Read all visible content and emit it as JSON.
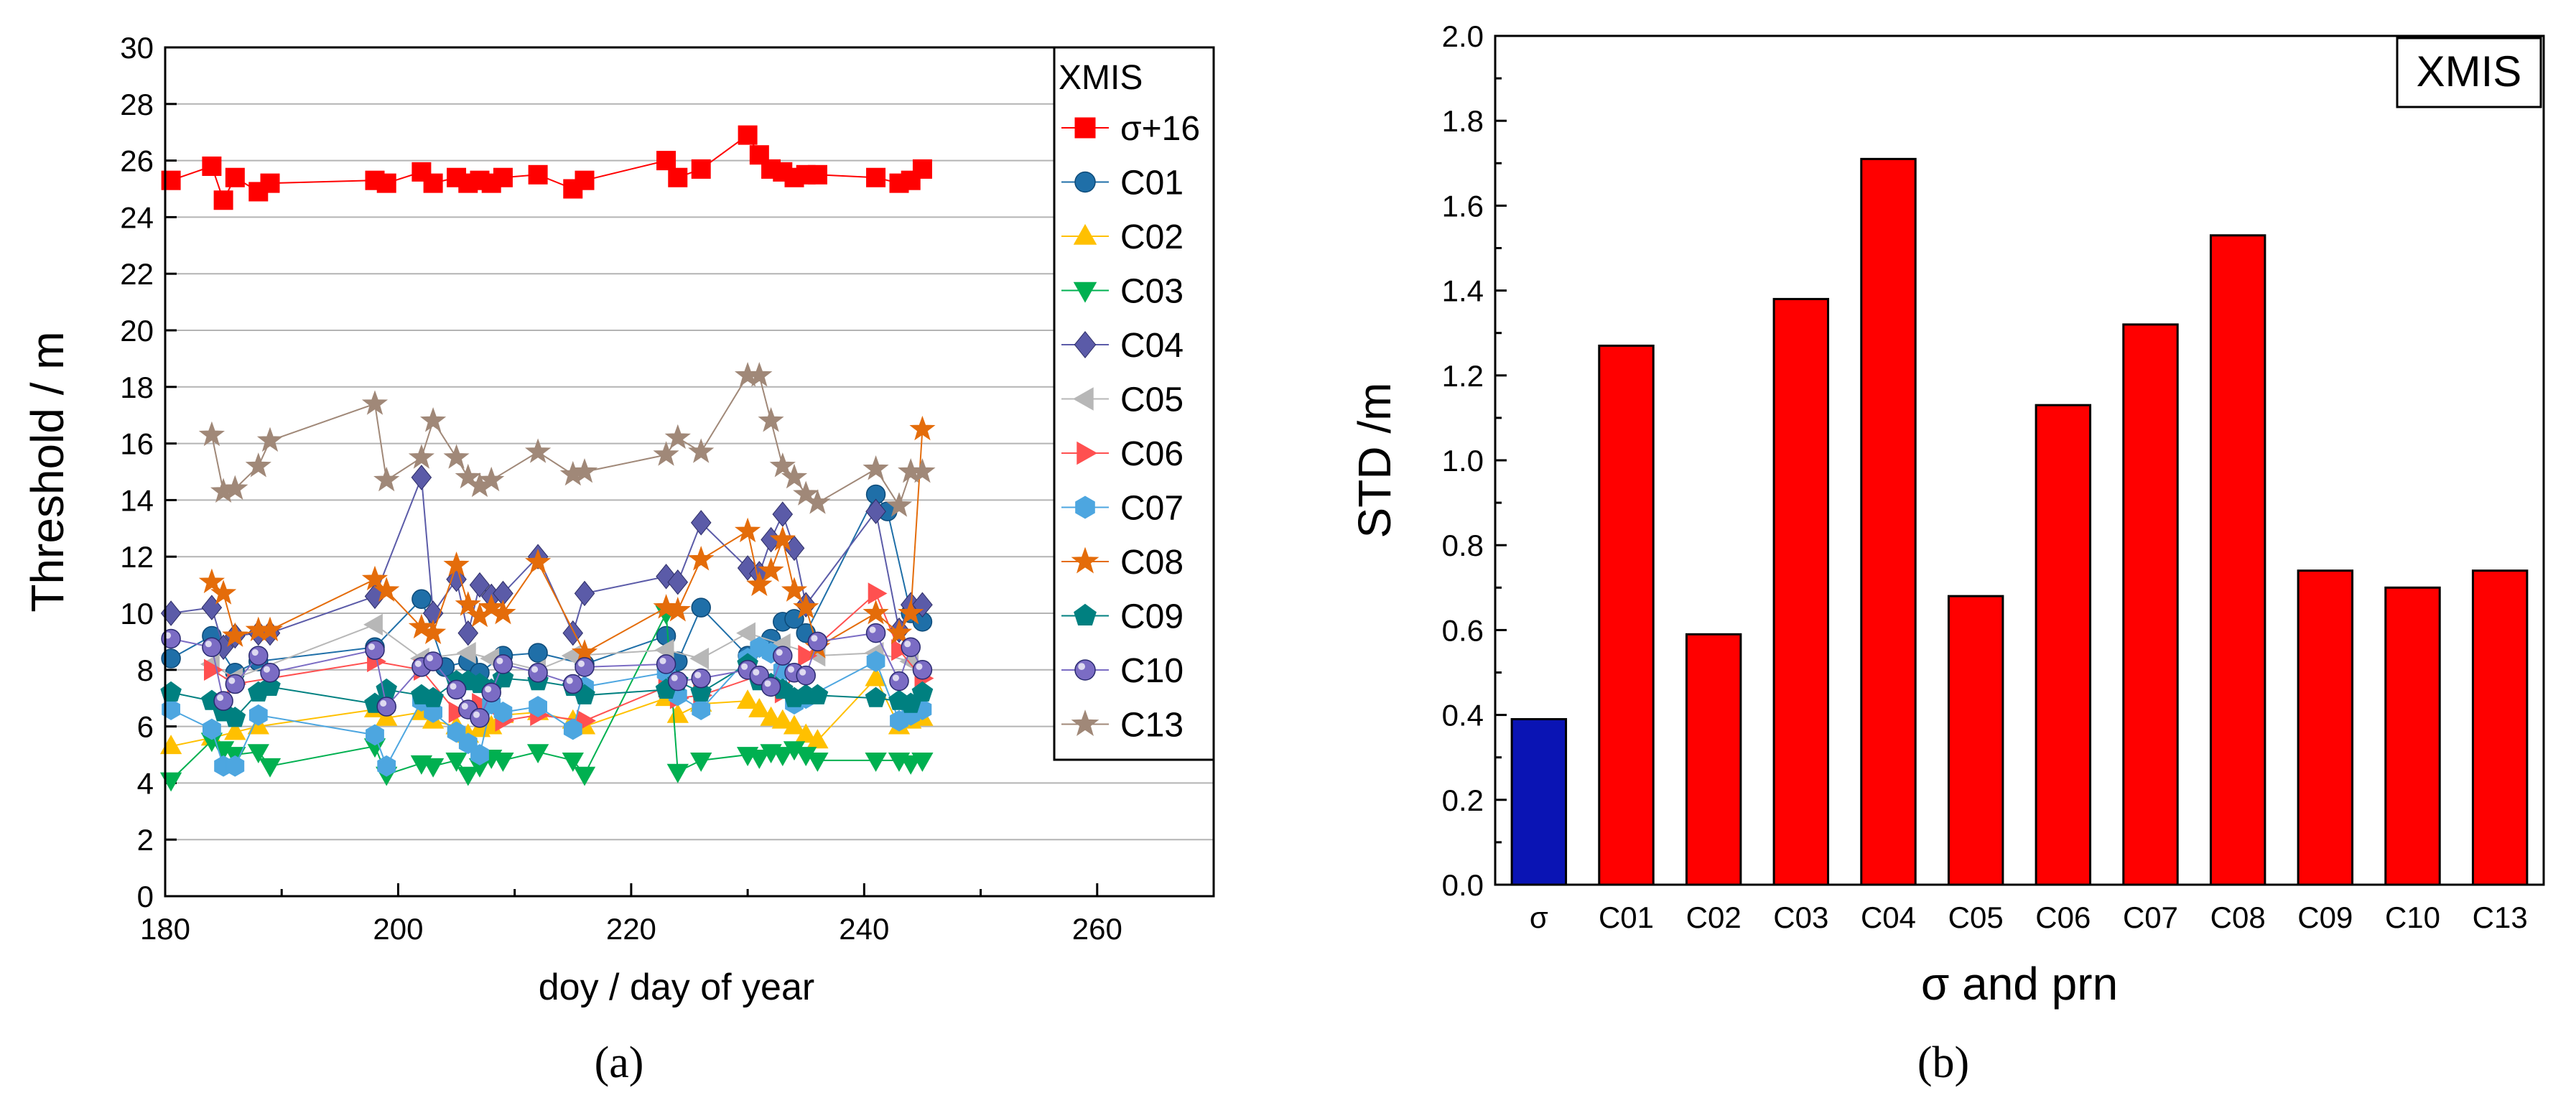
{
  "chart_data": [
    {
      "type": "scatter",
      "panel_label": "(a)",
      "title": "",
      "xlabel": "doy / day of year",
      "ylabel": "Threshold / m",
      "xlim": [
        180,
        270
      ],
      "ylim": [
        0,
        30
      ],
      "xticks": [
        180,
        200,
        220,
        240,
        260
      ],
      "yticks": [
        0,
        2,
        4,
        6,
        8,
        10,
        12,
        14,
        16,
        18,
        20,
        22,
        24,
        26,
        28,
        30
      ],
      "grid": true,
      "legend_title": "XMIS",
      "legend_position": "top-right",
      "series": [
        {
          "name": "σ+16",
          "color": "#ff0000",
          "marker": "square",
          "x": [
            180.5,
            184,
            185,
            186,
            188,
            189,
            198,
            199,
            202,
            203,
            205,
            206,
            207,
            208,
            209,
            212,
            215,
            216,
            223,
            224,
            226,
            230,
            231,
            232,
            233,
            234,
            235,
            236,
            241,
            243,
            244,
            245
          ],
          "y": [
            25.3,
            25.8,
            24.6,
            25.4,
            24.9,
            25.2,
            25.3,
            25.2,
            25.6,
            25.2,
            25.4,
            25.2,
            25.3,
            25.2,
            25.4,
            25.5,
            25.0,
            25.3,
            26.0,
            25.4,
            25.7,
            26.9,
            26.2,
            25.7,
            25.6,
            25.4,
            25.5,
            25.5,
            25.4,
            25.2,
            25.3,
            25.7
          ]
        },
        {
          "name": "C01",
          "color": "#1f6fa8",
          "marker": "circle",
          "x": [
            180.5,
            184,
            186,
            188,
            198,
            202,
            204,
            206,
            207,
            209,
            212,
            216,
            223,
            224,
            226,
            230,
            232,
            233,
            234,
            235,
            241,
            242,
            244,
            245
          ],
          "y": [
            8.4,
            9.2,
            7.9,
            8.3,
            8.8,
            10.5,
            8.1,
            8.3,
            7.9,
            8.5,
            8.6,
            8.2,
            9.2,
            8.3,
            10.2,
            8.5,
            9.1,
            9.7,
            9.8,
            9.3,
            14.2,
            13.6,
            10.0,
            9.7
          ]
        },
        {
          "name": "C02",
          "color": "#ffc000",
          "marker": "triangle",
          "x": [
            180.5,
            184,
            186,
            188,
            198,
            199,
            202,
            203,
            205,
            206,
            207,
            208,
            209,
            212,
            215,
            216,
            223,
            224,
            226,
            230,
            231,
            232,
            233,
            234,
            235,
            236,
            241,
            243,
            244,
            245
          ],
          "y": [
            5.3,
            5.6,
            5.8,
            6.0,
            6.6,
            6.3,
            6.5,
            6.2,
            6.0,
            5.7,
            5.9,
            6.0,
            6.4,
            6.5,
            6.2,
            6.0,
            7.0,
            6.4,
            6.8,
            6.9,
            6.6,
            6.3,
            6.2,
            6.0,
            5.7,
            5.5,
            7.7,
            6.0,
            6.2,
            6.3
          ]
        },
        {
          "name": "C03",
          "color": "#00b050",
          "marker": "triangle-down",
          "x": [
            180.5,
            184,
            185,
            186,
            188,
            189,
            198,
            199,
            202,
            203,
            205,
            206,
            207,
            208,
            209,
            212,
            215,
            216,
            223,
            224,
            226,
            230,
            231,
            232,
            233,
            234,
            235,
            236,
            241,
            243,
            244,
            245
          ],
          "y": [
            4.1,
            5.5,
            5.2,
            5.0,
            5.1,
            4.6,
            5.3,
            4.3,
            4.7,
            4.6,
            4.8,
            4.3,
            4.6,
            4.9,
            4.8,
            5.1,
            4.8,
            4.3,
            10.0,
            4.4,
            4.8,
            5.0,
            4.9,
            5.1,
            5.0,
            5.2,
            5.0,
            4.8,
            4.8,
            4.8,
            4.7,
            4.8
          ]
        },
        {
          "name": "C04",
          "color": "#5b5ba8",
          "marker": "diamond",
          "x": [
            180.5,
            184,
            185,
            186,
            188,
            189,
            198,
            202,
            203,
            205,
            206,
            207,
            208,
            209,
            212,
            215,
            216,
            223,
            224,
            226,
            230,
            231,
            232,
            233,
            234,
            235,
            241,
            243,
            244,
            245
          ],
          "y": [
            10.0,
            10.2,
            8.8,
            9.2,
            9.3,
            9.3,
            10.6,
            14.8,
            10.0,
            11.2,
            9.3,
            11.0,
            10.6,
            10.7,
            12.0,
            9.3,
            10.7,
            11.3,
            11.1,
            13.2,
            11.6,
            11.4,
            12.6,
            13.5,
            12.3,
            10.3,
            13.6,
            9.4,
            10.3,
            10.3
          ]
        },
        {
          "name": "C05",
          "color": "#b7b7b7",
          "marker": "triangle-left",
          "x": [
            184,
            186,
            198,
            202,
            206,
            208,
            212,
            215,
            223,
            226,
            230,
            233,
            236,
            241,
            244
          ],
          "y": [
            8.2,
            7.7,
            9.6,
            8.4,
            8.6,
            8.4,
            8.0,
            8.5,
            8.7,
            8.4,
            9.3,
            8.9,
            8.5,
            8.6,
            8.3
          ]
        },
        {
          "name": "C06",
          "color": "#ff5050",
          "marker": "triangle-right",
          "x": [
            184,
            186,
            198,
            202,
            205,
            207,
            209,
            212,
            216,
            223,
            224,
            226,
            231,
            233,
            235,
            241,
            243,
            245
          ],
          "y": [
            8.0,
            7.5,
            8.3,
            8.0,
            6.5,
            6.8,
            6.2,
            6.4,
            6.2,
            7.4,
            7.0,
            7.1,
            7.8,
            7.2,
            8.5,
            10.7,
            8.7,
            7.7
          ]
        },
        {
          "name": "C07",
          "color": "#4da6e0",
          "marker": "hexagon",
          "x": [
            180.5,
            184,
            185,
            186,
            188,
            198,
            199,
            202,
            203,
            205,
            206,
            207,
            208,
            209,
            212,
            215,
            216,
            223,
            224,
            226,
            230,
            231,
            232,
            233,
            234,
            235,
            241,
            243,
            244,
            245
          ],
          "y": [
            6.6,
            5.9,
            4.6,
            4.6,
            6.4,
            5.7,
            4.6,
            6.9,
            6.5,
            5.8,
            5.4,
            5.0,
            6.8,
            6.5,
            6.7,
            5.9,
            7.4,
            7.9,
            7.1,
            6.6,
            8.4,
            8.8,
            8.6,
            8.0,
            6.8,
            7.0,
            8.3,
            6.2,
            6.4,
            6.6
          ]
        },
        {
          "name": "C08",
          "color": "#e46c0a",
          "marker": "star",
          "x": [
            184,
            185,
            186,
            188,
            189,
            198,
            199,
            202,
            203,
            205,
            206,
            207,
            208,
            209,
            212,
            216,
            223,
            224,
            226,
            230,
            231,
            232,
            233,
            234,
            235,
            236,
            241,
            243,
            244,
            245
          ],
          "y": [
            11.1,
            10.7,
            9.2,
            9.4,
            9.4,
            11.2,
            10.8,
            9.5,
            9.3,
            11.7,
            10.3,
            9.9,
            10.2,
            10.0,
            11.8,
            8.6,
            10.2,
            10.1,
            11.9,
            12.9,
            11.0,
            11.5,
            12.6,
            10.8,
            10.2,
            8.8,
            10.0,
            9.3,
            10.0,
            16.5
          ]
        },
        {
          "name": "C09",
          "color": "#008080",
          "marker": "pentagon",
          "x": [
            180.5,
            184,
            185,
            186,
            188,
            189,
            198,
            199,
            202,
            203,
            205,
            206,
            207,
            208,
            209,
            212,
            215,
            216,
            223,
            224,
            226,
            230,
            231,
            232,
            233,
            234,
            235,
            236,
            241,
            243,
            244,
            245
          ],
          "y": [
            7.2,
            6.9,
            6.5,
            6.3,
            7.2,
            7.4,
            6.8,
            7.3,
            7.1,
            7.0,
            7.6,
            7.6,
            7.5,
            7.3,
            7.7,
            7.6,
            7.4,
            7.1,
            7.3,
            7.6,
            7.2,
            8.2,
            7.6,
            7.5,
            7.3,
            7.0,
            7.1,
            7.1,
            7.0,
            6.9,
            6.8,
            7.2
          ]
        },
        {
          "name": "C10",
          "color": "#7b6cc4",
          "marker": "sphere",
          "x": [
            180.5,
            184,
            185,
            186,
            188,
            189,
            198,
            199,
            202,
            203,
            205,
            206,
            207,
            208,
            209,
            212,
            215,
            216,
            223,
            224,
            226,
            230,
            231,
            232,
            233,
            234,
            235,
            236,
            241,
            243,
            244,
            245
          ],
          "y": [
            9.1,
            8.8,
            6.9,
            7.5,
            8.5,
            7.9,
            8.7,
            6.7,
            8.1,
            8.3,
            7.3,
            6.6,
            6.3,
            7.2,
            8.2,
            7.9,
            7.5,
            8.1,
            8.2,
            7.6,
            7.7,
            8.0,
            7.8,
            7.4,
            8.5,
            7.9,
            7.8,
            9.0,
            9.3,
            7.6,
            8.8,
            8.0
          ]
        },
        {
          "name": "C13",
          "color": "#a08878",
          "marker": "star",
          "x": [
            184,
            185,
            186,
            188,
            189,
            198,
            199,
            202,
            203,
            205,
            206,
            207,
            208,
            212,
            215,
            216,
            223,
            224,
            226,
            230,
            231,
            232,
            233,
            234,
            235,
            236,
            241,
            243,
            244,
            245
          ],
          "y": [
            16.3,
            14.3,
            14.4,
            15.2,
            16.1,
            17.4,
            14.7,
            15.5,
            16.8,
            15.5,
            14.8,
            14.5,
            14.7,
            15.7,
            14.9,
            15.0,
            15.6,
            16.2,
            15.7,
            18.4,
            18.4,
            16.8,
            15.2,
            14.8,
            14.2,
            13.9,
            15.1,
            13.8,
            15.0,
            15.0
          ]
        }
      ]
    },
    {
      "type": "bar",
      "panel_label": "(b)",
      "title": "",
      "xlabel": "σ and prn",
      "ylabel": "STD /m",
      "ylim": [
        0,
        2.0
      ],
      "yticks": [
        0.0,
        0.2,
        0.4,
        0.6,
        0.8,
        1.0,
        1.2,
        1.4,
        1.6,
        1.8,
        2.0
      ],
      "grid": false,
      "legend_title": "XMIS",
      "legend_position": "top-right",
      "categories": [
        "σ",
        "C01",
        "C02",
        "C03",
        "C04",
        "C05",
        "C06",
        "C07",
        "C08",
        "C09",
        "C10",
        "C13"
      ],
      "values": [
        0.39,
        1.27,
        0.59,
        1.38,
        1.71,
        0.68,
        1.13,
        1.32,
        1.53,
        0.74,
        0.7,
        0.74
      ],
      "colors": [
        "#0a14b4",
        "#ff0000",
        "#ff0000",
        "#ff0000",
        "#ff0000",
        "#ff0000",
        "#ff0000",
        "#ff0000",
        "#ff0000",
        "#ff0000",
        "#ff0000",
        "#ff0000"
      ]
    }
  ]
}
